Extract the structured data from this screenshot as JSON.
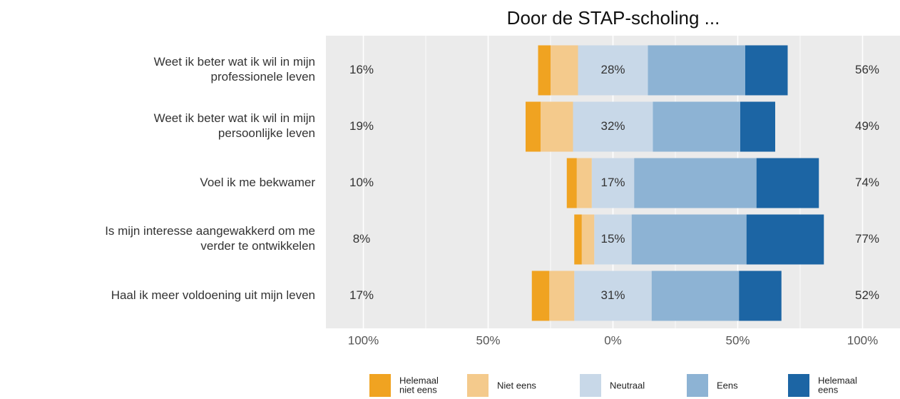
{
  "chart_data": {
    "type": "diverging_bar",
    "title": "Door de STAP-scholing ...",
    "categories": [
      "Weet ik beter wat ik wil in mijn\nprofessionele leven",
      "Weet ik beter wat ik wil in mijn\npersoonlijke leven",
      "Voel ik me bekwamer",
      "Is mijn interesse aangewakkerd om me\nverder te ontwikkelen",
      "Haal ik meer voldoening uit mijn leven"
    ],
    "series": [
      {
        "name": "Helemaal\nniet eens",
        "color": "#f0a321",
        "side": "left",
        "values": [
          5,
          6,
          4,
          3,
          7
        ]
      },
      {
        "name": "Niet eens",
        "color": "#f4ca8c",
        "side": "left",
        "values": [
          11,
          13,
          6,
          5,
          10
        ]
      },
      {
        "name": "Neutraal",
        "color": "#c8d8e8",
        "side": "center",
        "values": [
          28,
          32,
          17,
          15,
          31
        ],
        "value_labels": [
          "28%",
          "32%",
          "17%",
          "15%",
          "31%"
        ]
      },
      {
        "name": "Eens",
        "color": "#8db3d4",
        "side": "right",
        "values": [
          39,
          35,
          49,
          46,
          35
        ]
      },
      {
        "name": "Helemaal\neens",
        "color": "#1c65a4",
        "side": "right",
        "values": [
          17,
          14,
          25,
          31,
          17
        ]
      }
    ],
    "left_totals": [
      "16%",
      "19%",
      "10%",
      "8%",
      "17%"
    ],
    "right_totals": [
      "56%",
      "49%",
      "74%",
      "77%",
      "52%"
    ],
    "xlim": [
      -115,
      115
    ],
    "xticks": [
      {
        "value": -100,
        "label": "100%"
      },
      {
        "value": -50,
        "label": "50%"
      },
      {
        "value": 0,
        "label": "0%"
      },
      {
        "value": 50,
        "label": "50%"
      },
      {
        "value": 100,
        "label": "100%"
      }
    ],
    "xminor": [
      -75,
      -25,
      25,
      75
    ],
    "grid": true
  }
}
